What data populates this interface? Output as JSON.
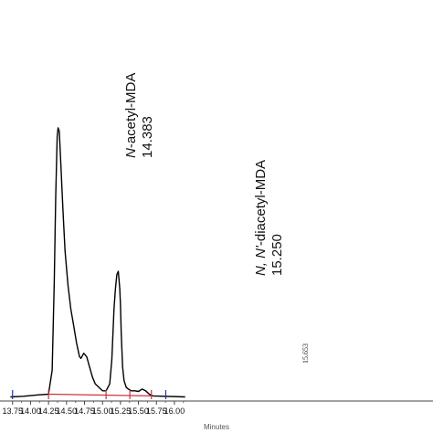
{
  "chart_data": {
    "type": "line",
    "xlabel": "Minutes",
    "xlim": [
      13.72,
      16.15
    ],
    "ylim": [
      0,
      1
    ],
    "x_ticks": [
      "13.75",
      "14.00",
      "14.25",
      "14.50",
      "14.75",
      "15.00",
      "15.25",
      "15.50",
      "15.75",
      "16.00"
    ],
    "x_tick_values": [
      13.75,
      14.0,
      14.25,
      14.5,
      14.75,
      15.0,
      15.25,
      15.5,
      15.75,
      16.0
    ],
    "series": [
      {
        "color": "#000000",
        "x": [
          13.72,
          13.9,
          14.1,
          14.25,
          14.3,
          14.33,
          14.35,
          14.37,
          14.383,
          14.4,
          14.42,
          14.45,
          14.48,
          14.52,
          14.56,
          14.6,
          14.64,
          14.68,
          14.7,
          14.74,
          14.78,
          14.82,
          14.86,
          14.9,
          15.0,
          15.05,
          15.1,
          15.13,
          15.16,
          15.18,
          15.2,
          15.22,
          15.24,
          15.25,
          15.26,
          15.28,
          15.3,
          15.33,
          15.36,
          15.4,
          15.45,
          15.5,
          15.55,
          15.6,
          15.65,
          15.7,
          16.15
        ],
        "y": [
          0.012,
          0.014,
          0.018,
          0.02,
          0.09,
          0.35,
          0.6,
          0.775,
          0.8,
          0.79,
          0.7,
          0.56,
          0.44,
          0.34,
          0.27,
          0.22,
          0.17,
          0.13,
          0.125,
          0.14,
          0.13,
          0.1,
          0.07,
          0.05,
          0.03,
          0.03,
          0.05,
          0.12,
          0.27,
          0.33,
          0.37,
          0.38,
          0.33,
          0.28,
          0.2,
          0.1,
          0.06,
          0.04,
          0.035,
          0.03,
          0.03,
          0.028,
          0.035,
          0.03,
          0.02,
          0.015,
          0.012
        ]
      }
    ],
    "baseline_color": "#cc3344",
    "baseline": {
      "x": [
        14.25,
        15.68
      ],
      "y": [
        0.02,
        0.015
      ]
    },
    "markers": [
      {
        "x": 13.75,
        "color": "#2233aa"
      },
      {
        "x": 14.25,
        "color": "#cc3344"
      },
      {
        "x": 15.05,
        "color": "#cc3344"
      },
      {
        "x": 15.38,
        "color": "#cc3344"
      },
      {
        "x": 15.68,
        "color": "#cc3344"
      },
      {
        "x": 15.88,
        "color": "#2233aa"
      }
    ],
    "annotations": [
      {
        "name_italic": "N",
        "name_rest": "-acetyl-MDA",
        "rt": "14.383",
        "x": 14.383
      },
      {
        "name_italic": "N, N'",
        "name_rest": "-diacetyl-MDA",
        "rt": "15.250",
        "x": 15.25
      },
      {
        "rt": "15.653",
        "x": 15.653,
        "small": true
      }
    ]
  }
}
